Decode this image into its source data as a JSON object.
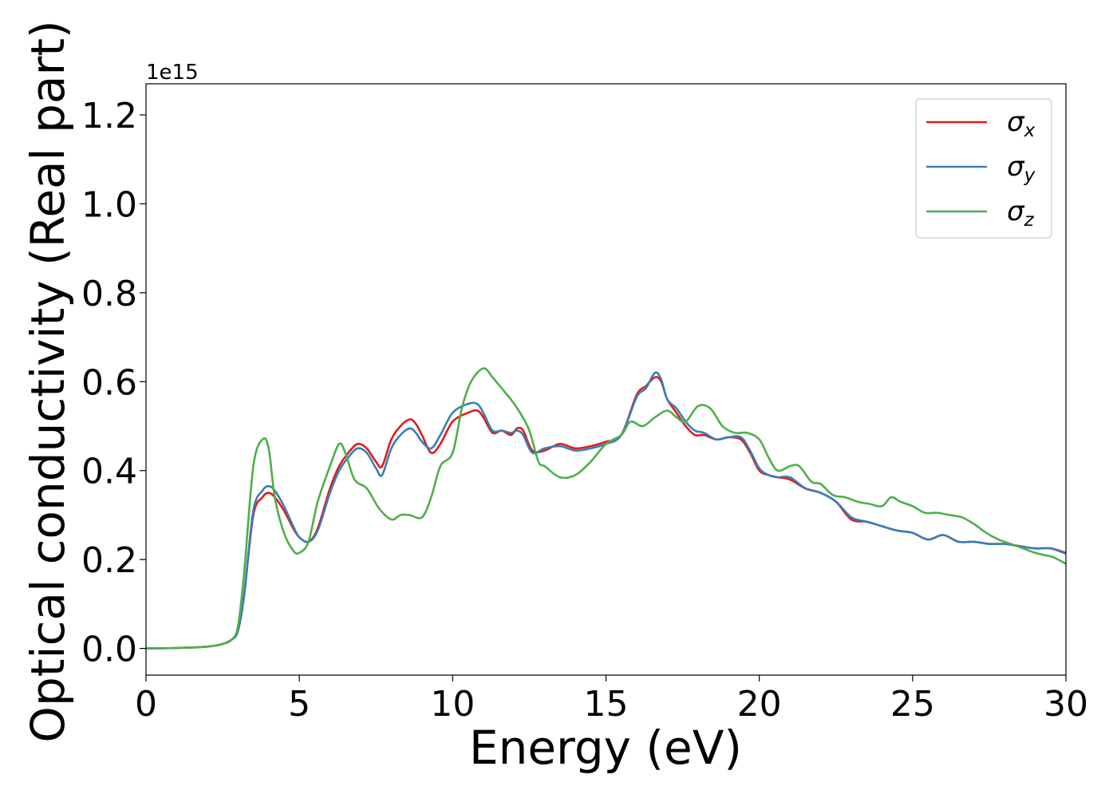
{
  "chart_data": {
    "type": "line",
    "title": "",
    "xlabel": "Energy (eV)",
    "ylabel": "Optical conductivity (Real part)",
    "y_offset_label": "1e15",
    "xlim": [
      0,
      30
    ],
    "ylim": [
      -0.06,
      1.27
    ],
    "x_ticks": [
      0,
      5,
      10,
      15,
      20,
      25,
      30
    ],
    "x_tick_labels": [
      "0",
      "5",
      "10",
      "15",
      "20",
      "25",
      "30"
    ],
    "y_ticks": [
      0.0,
      0.2,
      0.4,
      0.6,
      0.8,
      1.0,
      1.2
    ],
    "y_tick_labels": [
      "0.0",
      "0.2",
      "0.4",
      "0.6",
      "0.8",
      "1.0",
      "1.2"
    ],
    "grid": false,
    "legend_position": "top-right",
    "series": [
      {
        "name": "σx",
        "symbol": "σ",
        "subscript": "x",
        "color": "#e41a1c",
        "x": [
          0,
          1,
          2,
          2.5,
          2.8,
          3.0,
          3.2,
          3.5,
          3.8,
          4.0,
          4.2,
          4.5,
          4.8,
          5.0,
          5.3,
          5.6,
          6.0,
          6.3,
          6.6,
          6.9,
          7.2,
          7.5,
          7.7,
          8.0,
          8.3,
          8.6,
          8.8,
          9.0,
          9.3,
          9.6,
          10.0,
          10.5,
          10.8,
          11.0,
          11.3,
          11.6,
          11.9,
          12.1,
          12.3,
          12.6,
          13.0,
          13.5,
          14.0,
          14.5,
          15.0,
          15.5,
          16.0,
          16.3,
          16.6,
          16.8,
          17.0,
          17.3,
          17.6,
          17.9,
          18.2,
          18.6,
          19.0,
          19.4,
          19.7,
          20.0,
          20.3,
          20.6,
          21.0,
          21.5,
          22.0,
          22.5,
          23.0,
          23.5,
          24.0,
          24.5,
          25.0,
          25.5,
          26.0,
          26.5,
          27.0,
          27.5,
          28.0,
          28.5,
          29.0,
          29.5,
          30.0
        ],
        "y": [
          0.0,
          0.001,
          0.004,
          0.01,
          0.02,
          0.04,
          0.12,
          0.3,
          0.34,
          0.35,
          0.34,
          0.31,
          0.27,
          0.25,
          0.24,
          0.27,
          0.36,
          0.41,
          0.44,
          0.46,
          0.45,
          0.42,
          0.41,
          0.47,
          0.5,
          0.515,
          0.505,
          0.48,
          0.44,
          0.46,
          0.51,
          0.53,
          0.535,
          0.52,
          0.485,
          0.49,
          0.48,
          0.495,
          0.49,
          0.445,
          0.445,
          0.46,
          0.45,
          0.455,
          0.465,
          0.48,
          0.57,
          0.59,
          0.61,
          0.6,
          0.56,
          0.53,
          0.5,
          0.48,
          0.48,
          0.47,
          0.475,
          0.47,
          0.44,
          0.4,
          0.39,
          0.385,
          0.38,
          0.36,
          0.35,
          0.33,
          0.29,
          0.285,
          0.275,
          0.265,
          0.26,
          0.245,
          0.255,
          0.24,
          0.24,
          0.235,
          0.235,
          0.23,
          0.225,
          0.225,
          0.215
        ]
      },
      {
        "name": "σy",
        "symbol": "σ",
        "subscript": "y",
        "color": "#377eb8",
        "x": [
          0,
          1,
          2,
          2.5,
          2.8,
          3.0,
          3.2,
          3.5,
          3.8,
          4.0,
          4.2,
          4.5,
          4.8,
          5.0,
          5.3,
          5.6,
          6.0,
          6.3,
          6.6,
          6.9,
          7.2,
          7.5,
          7.7,
          8.0,
          8.3,
          8.6,
          8.8,
          9.0,
          9.3,
          9.6,
          10.0,
          10.5,
          10.8,
          11.0,
          11.3,
          11.6,
          11.9,
          12.1,
          12.3,
          12.6,
          13.0,
          13.5,
          14.0,
          14.5,
          15.0,
          15.5,
          16.0,
          16.3,
          16.6,
          16.8,
          17.0,
          17.3,
          17.6,
          17.9,
          18.2,
          18.6,
          19.0,
          19.4,
          19.7,
          20.0,
          20.3,
          20.6,
          21.0,
          21.5,
          22.0,
          22.5,
          23.0,
          23.5,
          24.0,
          24.5,
          25.0,
          25.5,
          26.0,
          26.5,
          27.0,
          27.5,
          28.0,
          28.5,
          29.0,
          29.5,
          30.0
        ],
        "y": [
          0.0,
          0.001,
          0.004,
          0.01,
          0.02,
          0.04,
          0.12,
          0.31,
          0.355,
          0.365,
          0.355,
          0.32,
          0.275,
          0.25,
          0.24,
          0.265,
          0.35,
          0.4,
          0.43,
          0.45,
          0.44,
          0.405,
          0.39,
          0.45,
          0.48,
          0.495,
          0.485,
          0.465,
          0.45,
          0.48,
          0.53,
          0.55,
          0.55,
          0.53,
          0.49,
          0.49,
          0.485,
          0.49,
          0.48,
          0.44,
          0.45,
          0.455,
          0.445,
          0.45,
          0.46,
          0.48,
          0.565,
          0.585,
          0.62,
          0.605,
          0.56,
          0.54,
          0.51,
          0.49,
          0.485,
          0.47,
          0.475,
          0.475,
          0.445,
          0.405,
          0.39,
          0.385,
          0.385,
          0.36,
          0.35,
          0.33,
          0.295,
          0.285,
          0.275,
          0.265,
          0.26,
          0.245,
          0.255,
          0.24,
          0.24,
          0.235,
          0.235,
          0.23,
          0.225,
          0.225,
          0.213
        ]
      },
      {
        "name": "σz",
        "symbol": "σ",
        "subscript": "z",
        "color": "#4daf4a",
        "x": [
          0,
          1,
          2,
          2.5,
          2.8,
          3.0,
          3.2,
          3.5,
          3.8,
          4.0,
          4.2,
          4.5,
          4.8,
          5.0,
          5.3,
          5.6,
          6.0,
          6.3,
          6.5,
          6.8,
          7.2,
          7.6,
          8.0,
          8.3,
          8.6,
          9.0,
          9.3,
          9.6,
          10.0,
          10.3,
          10.6,
          11.0,
          11.3,
          11.6,
          11.9,
          12.2,
          12.5,
          12.8,
          13.0,
          13.5,
          14.0,
          14.5,
          15.0,
          15.5,
          15.8,
          16.2,
          16.6,
          17.0,
          17.3,
          17.6,
          18.0,
          18.4,
          18.8,
          19.2,
          19.6,
          20.0,
          20.3,
          20.6,
          21.0,
          21.3,
          21.7,
          22.0,
          22.4,
          22.8,
          23.2,
          23.6,
          24.0,
          24.3,
          24.6,
          25.0,
          25.4,
          25.8,
          26.2,
          26.6,
          27.0,
          27.4,
          27.8,
          28.2,
          28.6,
          29.0,
          29.3,
          29.6,
          30.0
        ],
        "y": [
          0.0,
          0.001,
          0.004,
          0.01,
          0.02,
          0.05,
          0.17,
          0.41,
          0.47,
          0.45,
          0.34,
          0.26,
          0.22,
          0.215,
          0.24,
          0.33,
          0.41,
          0.46,
          0.44,
          0.38,
          0.36,
          0.315,
          0.29,
          0.3,
          0.3,
          0.295,
          0.34,
          0.41,
          0.44,
          0.54,
          0.6,
          0.63,
          0.61,
          0.585,
          0.56,
          0.53,
          0.49,
          0.42,
          0.41,
          0.385,
          0.39,
          0.42,
          0.46,
          0.48,
          0.51,
          0.5,
          0.52,
          0.535,
          0.52,
          0.51,
          0.545,
          0.54,
          0.5,
          0.485,
          0.485,
          0.47,
          0.43,
          0.4,
          0.41,
          0.41,
          0.375,
          0.37,
          0.345,
          0.34,
          0.33,
          0.325,
          0.32,
          0.34,
          0.33,
          0.32,
          0.305,
          0.305,
          0.3,
          0.295,
          0.28,
          0.26,
          0.245,
          0.235,
          0.225,
          0.215,
          0.21,
          0.205,
          0.19
        ]
      }
    ]
  }
}
